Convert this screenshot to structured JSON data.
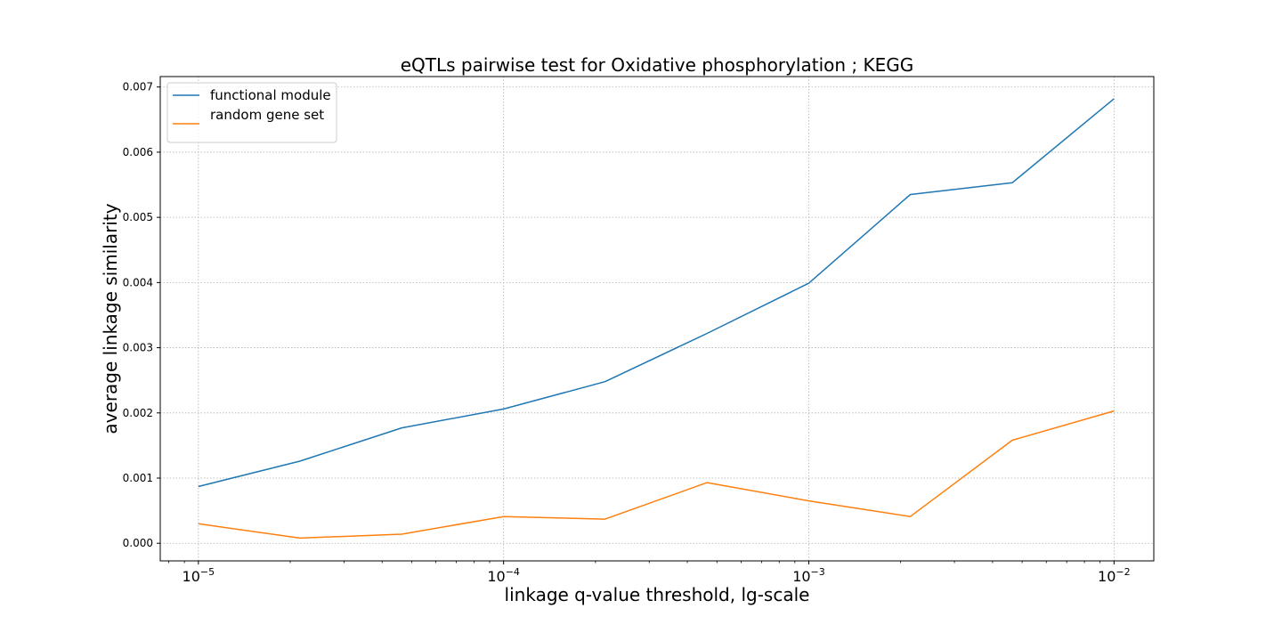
{
  "chart_data": {
    "type": "line",
    "title": "eQTLs pairwise test for Oxidative phosphorylation ; KEGG",
    "xlabel": "linkage q-value threshold, lg-scale",
    "ylabel": "average linkage similarity",
    "x_scale": "log",
    "xlim": [
      7.5e-06,
      0.0135
    ],
    "ylim": [
      -0.00027,
      0.00716
    ],
    "x_ticks": [
      1e-05,
      0.0001,
      0.001,
      0.01
    ],
    "x_tick_labels": [
      {
        "base": "10",
        "exp": "−5"
      },
      {
        "base": "10",
        "exp": "−4"
      },
      {
        "base": "10",
        "exp": "−3"
      },
      {
        "base": "10",
        "exp": "−2"
      }
    ],
    "y_ticks": [
      0.0,
      0.001,
      0.002,
      0.003,
      0.004,
      0.005,
      0.006,
      0.007
    ],
    "y_tick_labels": [
      "0.000",
      "0.001",
      "0.002",
      "0.003",
      "0.004",
      "0.005",
      "0.006",
      "0.007"
    ],
    "grid": true,
    "legend_position": "top-left",
    "x": [
      1e-05,
      2.15e-05,
      4.64e-05,
      0.0001,
      0.000215,
      0.000464,
      0.001,
      0.00215,
      0.00464,
      0.01
    ],
    "series": [
      {
        "name": "functional module",
        "color": "#1f77b4",
        "values": [
          0.00087,
          0.00126,
          0.00177,
          0.00206,
          0.00248,
          0.00322,
          0.00399,
          0.00535,
          0.00553,
          0.00682
        ]
      },
      {
        "name": "random gene set",
        "color": "#ff7f0e",
        "values": [
          0.0003,
          8e-05,
          0.00014,
          0.00041,
          0.00037,
          0.00093,
          0.00065,
          0.00041,
          0.00158,
          0.00203
        ]
      }
    ]
  }
}
